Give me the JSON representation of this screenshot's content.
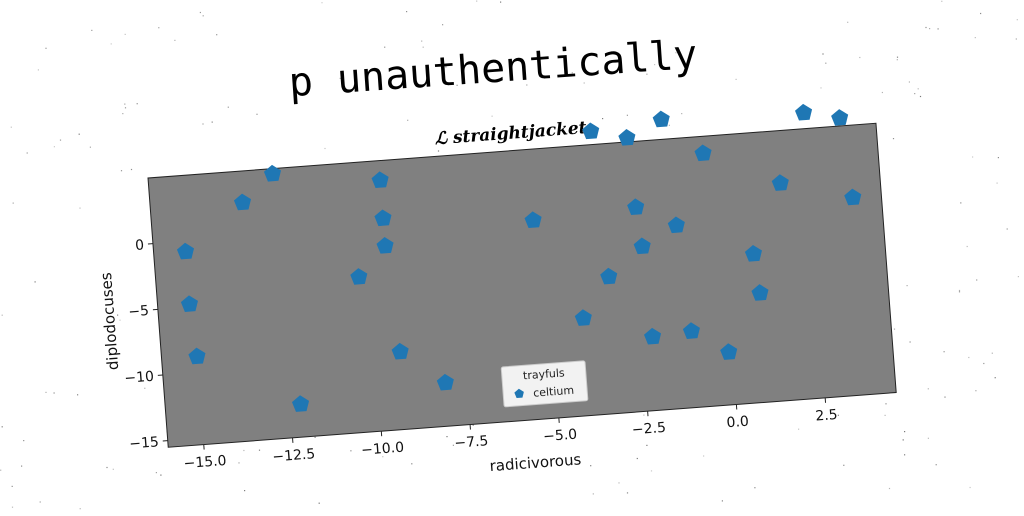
{
  "title": "p unauthentically",
  "subtitle": "ℒ straightjacket",
  "chart_data": {
    "type": "scatter",
    "xlabel": "radicivorous",
    "ylabel": "diplodocuses",
    "xlim": [
      -16,
      4.5
    ],
    "ylim": [
      -15.5,
      5
    ],
    "xticks": [
      -15.0,
      -12.5,
      -10.0,
      -7.5,
      -5.0,
      -2.5,
      0.0,
      2.5
    ],
    "xtick_labels": [
      "−15.0",
      "−12.5",
      "−10.0",
      "−7.5",
      "−5.0",
      "−2.5",
      "0.0",
      "2.5"
    ],
    "yticks": [
      0,
      -5,
      -10,
      -15
    ],
    "ytick_labels": [
      "0",
      "−5",
      "−10",
      "−15"
    ],
    "grid": false,
    "background": "#808080",
    "legend": {
      "title": "trayfuls",
      "placement": "lower center"
    },
    "series": [
      {
        "name": "celtium",
        "color": "#1f77b4",
        "marker": "pentagon",
        "x": [
          -15.1,
          -15.1,
          -15.0,
          -13.4,
          -12.5,
          -12.2,
          -10.3,
          -9.5,
          -9.5,
          -9.5,
          -9.3,
          -8.1,
          -5.3,
          -4.1,
          -3.3,
          -3.5,
          -2.5,
          -2.4,
          -2.3,
          -2.2,
          -1.5,
          -1.3,
          -1.1,
          -0.4,
          -0.1,
          0.8,
          0.9,
          1.7,
          2.5,
          3.5,
          3.7
        ],
        "y": [
          -0.8,
          -4.8,
          -8.8,
          2.6,
          4.6,
          -13.0,
          -3.7,
          3.5,
          0.6,
          -1.5,
          -9.6,
          -12.2,
          -0.4,
          -8.1,
          -5.1,
          6.0,
          5.3,
          0.0,
          -3.0,
          -9.9,
          6.5,
          -1.6,
          -9.7,
          3.7,
          -11.5,
          -4.2,
          -7.2,
          1.0,
          6.2,
          5.6,
          -0.5
        ]
      }
    ]
  }
}
